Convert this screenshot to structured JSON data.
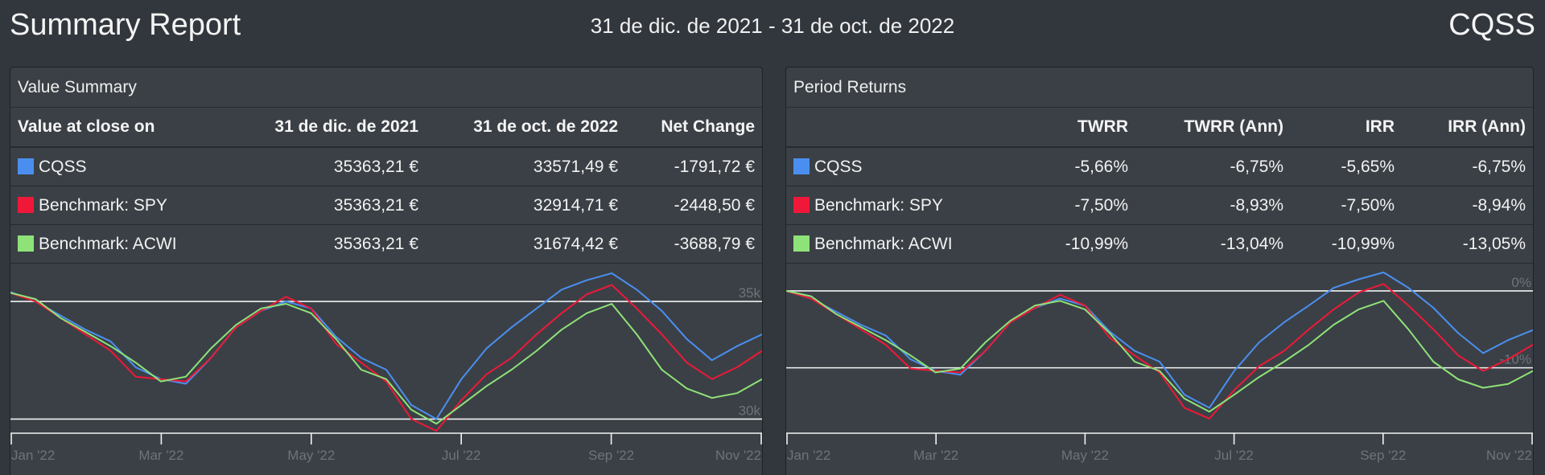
{
  "header": {
    "title": "Summary Report",
    "period": "31 de dic. de 2021 - 31 de oct. de 2022",
    "account": "CQSS"
  },
  "colors": {
    "cqss": "#4a8ff0",
    "spy": "#ef1838",
    "acwi": "#8ee278",
    "background": "#32373d",
    "panel": "#3b4046"
  },
  "value_summary": {
    "title": "Value Summary",
    "columns": [
      "Value at close on",
      "31 de dic. de 2021",
      "31 de oct. de 2022",
      "Net Change"
    ],
    "rows": [
      {
        "name": "CQSS",
        "start": "35363,21 €",
        "end": "33571,49 €",
        "change": "-1791,72 €"
      },
      {
        "name": "Benchmark: SPY",
        "start": "35363,21 €",
        "end": "32914,71 €",
        "change": "-2448,50 €"
      },
      {
        "name": "Benchmark: ACWI",
        "start": "35363,21 €",
        "end": "31674,42 €",
        "change": "-3688,79 €"
      }
    ]
  },
  "period_returns": {
    "title": "Period Returns",
    "columns": [
      "",
      "TWRR",
      "TWRR (Ann)",
      "IRR",
      "IRR (Ann)"
    ],
    "rows": [
      {
        "name": "CQSS",
        "twrr": "-5,66%",
        "twrr_ann": "-6,75%",
        "irr": "-5,65%",
        "irr_ann": "-6,75%"
      },
      {
        "name": "Benchmark: SPY",
        "twrr": "-7,50%",
        "twrr_ann": "-8,93%",
        "irr": "-7,50%",
        "irr_ann": "-8,94%"
      },
      {
        "name": "Benchmark: ACWI",
        "twrr": "-10,99%",
        "twrr_ann": "-13,04%",
        "irr": "-10,99%",
        "irr_ann": "-13,05%"
      }
    ]
  },
  "chart_data": [
    {
      "type": "line",
      "x_tick_labels": [
        "Jan '22",
        "Mar '22",
        "May '22",
        "Jul '22",
        "Sep '22",
        "Nov '22"
      ],
      "y_tick_labels": [
        "35k",
        "30k"
      ],
      "y_ticks": [
        35000,
        30000
      ],
      "ylim": [
        29400,
        36300
      ],
      "grid": true,
      "legend": "none",
      "series": [
        {
          "name": "CQSS",
          "values": [
            35400,
            35000,
            34400,
            33800,
            33300,
            32200,
            31700,
            31500,
            32600,
            33900,
            34600,
            35000,
            34700,
            33500,
            32600,
            32100,
            30600,
            30000,
            31700,
            33000,
            33900,
            34700,
            35500,
            35900,
            36200,
            35500,
            34600,
            33400,
            32500,
            33100,
            33600
          ]
        },
        {
          "name": "Benchmark: SPY",
          "values": [
            35363,
            35000,
            34300,
            33600,
            32900,
            31800,
            31700,
            31600,
            32600,
            33900,
            34600,
            35200,
            34700,
            33200,
            32400,
            31600,
            30000,
            29500,
            30800,
            31900,
            32600,
            33600,
            34500,
            35300,
            35700,
            34700,
            33600,
            32400,
            31700,
            32200,
            32900
          ]
        },
        {
          "name": "Benchmark: ACWI",
          "values": [
            35363,
            35100,
            34300,
            33700,
            33100,
            32400,
            31600,
            31800,
            33000,
            34000,
            34700,
            34900,
            34500,
            33400,
            32100,
            31700,
            30400,
            29800,
            30600,
            31400,
            32100,
            32900,
            33800,
            34500,
            34900,
            33600,
            32100,
            31300,
            30900,
            31100,
            31700
          ]
        }
      ]
    },
    {
      "type": "line",
      "x_tick_labels": [
        "Jan '22",
        "Mar '22",
        "May '22",
        "Jul '22",
        "Sep '22",
        "Nov '22"
      ],
      "y_tick_labels": [
        "0%",
        "-10%"
      ],
      "y_ticks": [
        0,
        -10
      ],
      "ylim": [
        -18.5,
        2.6
      ],
      "grid": true,
      "legend": "none",
      "series": [
        {
          "name": "CQSS",
          "values": [
            0.0,
            -1.0,
            -2.7,
            -4.4,
            -5.8,
            -8.9,
            -10.4,
            -10.9,
            -7.8,
            -4.1,
            -2.2,
            -1.0,
            -1.9,
            -5.3,
            -7.8,
            -9.2,
            -13.5,
            -15.2,
            -10.4,
            -6.7,
            -4.1,
            -1.9,
            0.4,
            1.5,
            2.4,
            0.4,
            -2.2,
            -5.5,
            -8.1,
            -6.4,
            -5.1
          ]
        },
        {
          "name": "Benchmark: SPY",
          "values": [
            0.0,
            -1.0,
            -3.0,
            -5.0,
            -7.0,
            -10.1,
            -10.4,
            -10.6,
            -7.8,
            -4.1,
            -2.2,
            -0.5,
            -1.9,
            -6.1,
            -8.4,
            -10.6,
            -15.2,
            -16.6,
            -12.9,
            -9.8,
            -7.8,
            -5.0,
            -2.4,
            -0.2,
            0.9,
            -1.9,
            -5.0,
            -8.4,
            -10.4,
            -8.9,
            -7.0
          ]
        },
        {
          "name": "Benchmark: ACWI",
          "values": [
            0.0,
            -0.7,
            -3.0,
            -4.7,
            -6.4,
            -8.4,
            -10.6,
            -10.1,
            -6.7,
            -3.9,
            -1.9,
            -1.3,
            -2.4,
            -5.5,
            -9.2,
            -10.4,
            -14.0,
            -15.7,
            -13.5,
            -11.2,
            -9.2,
            -7.0,
            -4.4,
            -2.4,
            -1.3,
            -5.0,
            -9.2,
            -11.5,
            -12.6,
            -12.1,
            -10.4
          ]
        }
      ]
    }
  ]
}
